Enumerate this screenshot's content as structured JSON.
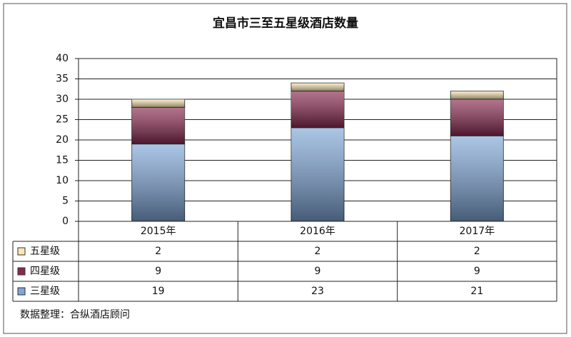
{
  "chart_data": {
    "type": "stacked_bar",
    "title": "宜昌市三至五星级酒店数量",
    "categories": [
      "2015年",
      "2016年",
      "2017年"
    ],
    "series": [
      {
        "name": "三星级",
        "color": "#7ea6d8",
        "values": [
          19,
          23,
          21
        ]
      },
      {
        "name": "四星级",
        "color": "#8a2850",
        "values": [
          9,
          9,
          9
        ]
      },
      {
        "name": "五星级",
        "color": "#fbe6b4",
        "values": [
          2,
          2,
          2
        ]
      }
    ],
    "ylim": [
      0,
      40
    ],
    "yticks": [
      0,
      5,
      10,
      15,
      20,
      25,
      30,
      35,
      40
    ],
    "grid": true,
    "source": "数据整理：合纵酒店顾问"
  }
}
